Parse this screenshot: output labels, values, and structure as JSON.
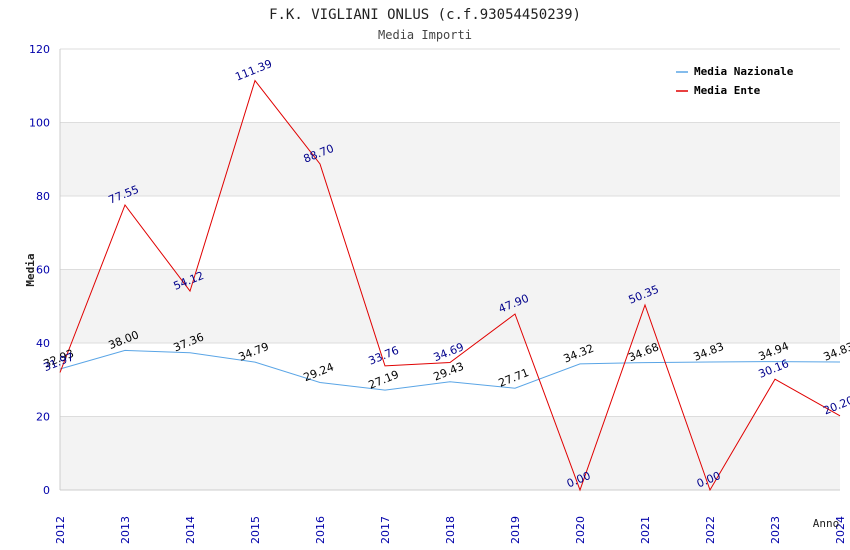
{
  "chart_data": {
    "type": "line",
    "title": "F.K. VIGLIANI ONLUS (c.f.93054450239)",
    "subtitle": "Media Importi",
    "xlabel": "Anno",
    "ylabel": "Media",
    "ylim": [
      0,
      120
    ],
    "yticks": [
      "0",
      "20",
      "40",
      "60",
      "80",
      "100",
      "120"
    ],
    "grid": true,
    "legend_position": "top-right",
    "categories": [
      "2012",
      "2013",
      "2014",
      "2015",
      "2016",
      "2017",
      "2018",
      "2019",
      "2020",
      "2021",
      "2022",
      "2023",
      "2024"
    ],
    "series": [
      {
        "name": "Media Nazionale",
        "color": "#5aa5e6",
        "label_color": "#000000",
        "values": [
          32.93,
          38.0,
          37.36,
          34.79,
          29.24,
          27.19,
          29.43,
          27.71,
          34.32,
          34.68,
          34.83,
          34.94,
          34.83
        ],
        "labels": [
          "32.93",
          "38.00",
          "37.36",
          "34.79",
          "29.24",
          "27.19",
          "29.43",
          "27.71",
          "34.32",
          "34.68",
          "34.83",
          "34.94",
          "34.83"
        ]
      },
      {
        "name": "Media Ente",
        "color": "#e00000",
        "label_color": "#00008b",
        "values": [
          31.97,
          77.55,
          54.12,
          111.39,
          88.7,
          33.76,
          34.69,
          47.9,
          0.0,
          50.35,
          0.0,
          30.16,
          20.2
        ],
        "labels": [
          "31.97",
          "77.55",
          "54.12",
          "111.39",
          "88.70",
          "33.76",
          "34.69",
          "47.90",
          "0.00",
          "50.35",
          "0.00",
          "30.16",
          "20.20"
        ]
      }
    ],
    "colors": {
      "band_light": "#ffffff",
      "band_dark": "#f3f3f3",
      "gridline": "#dddddd",
      "tick_label": "#0000aa",
      "title": "#222222",
      "subtitle": "#444444"
    }
  }
}
